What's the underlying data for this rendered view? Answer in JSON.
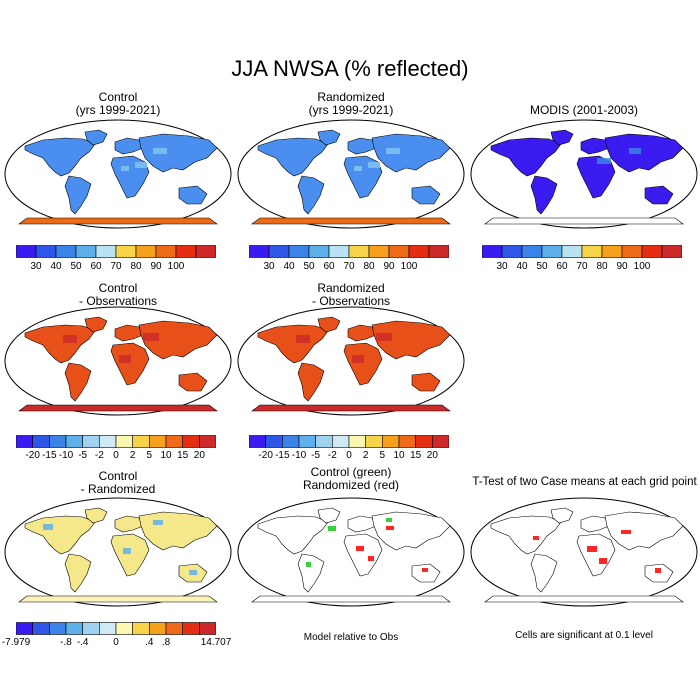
{
  "title": "JJA NWSA (% reflected)",
  "panels": {
    "control": {
      "title_line1": "Control",
      "title_line2": "(yrs 1999-2021)"
    },
    "randomized": {
      "title_line1": "Randomized",
      "title_line2": "(yrs 1999-2021)"
    },
    "modis": {
      "title_line1": "MODIS (2001-2003)"
    },
    "control_obs": {
      "title_line1": "Control",
      "title_line2": "- Observations"
    },
    "random_obs": {
      "title_line1": "Randomized",
      "title_line2": "- Observations"
    },
    "control_random": {
      "title_line1": "Control",
      "title_line2": "- Randomized"
    },
    "green_red": {
      "title_line1": "Control (green)",
      "title_line2": "Randomized (red)",
      "note": "Model relative to Obs"
    },
    "ttest": {
      "title_line1": "T-Test of two Case means at each grid point",
      "note": "Cells are significant at 0.1 level"
    }
  },
  "colorbars": {
    "absolute": {
      "colors": [
        "#3b1cf0",
        "#2f56e6",
        "#3c83e8",
        "#5fb0ea",
        "#b9e2f2",
        "#f7d34a",
        "#f5a11d",
        "#ef6a16",
        "#e52d13",
        "#cc2a2a"
      ],
      "labels": [
        "30",
        "40",
        "50",
        "60",
        "70",
        "80",
        "90",
        "100"
      ]
    },
    "difference": {
      "colors": [
        "#3b1cf0",
        "#2f56e6",
        "#3c83e8",
        "#5fb0ea",
        "#9fd2ef",
        "#cfeaf5",
        "#fbf7b0",
        "#f7d34a",
        "#f5a11d",
        "#ef6a16",
        "#e52d13",
        "#cc2a2a"
      ],
      "labels": [
        "-20",
        "-15",
        "-10",
        "-5",
        "-2",
        "0",
        "2",
        "5",
        "10",
        "15",
        "20"
      ]
    },
    "model_diff": {
      "colors": [
        "#3b1cf0",
        "#2f56e6",
        "#3c83e8",
        "#5fb0ea",
        "#9fd2ef",
        "#cfeaf5",
        "#fbf7b0",
        "#f7d34a",
        "#f5a11d",
        "#ef6a16",
        "#e52d13",
        "#cc2a2a"
      ],
      "labels": [
        "-7.979",
        "-.8",
        "-.4",
        "0",
        ".4",
        ".8",
        "14.707"
      ]
    }
  },
  "map_colors": {
    "control": {
      "land": "#4a8ff0",
      "accent": "#7fc3f0",
      "antarctic": "#ef6a16"
    },
    "randomized": {
      "land": "#4a8ff0",
      "accent": "#7fc3f0",
      "antarctic": "#ef6a16"
    },
    "modis": {
      "land": "#3b1cf0",
      "accent": "#3c83e8",
      "antarctic": "#ffffff"
    },
    "control_obs": {
      "land": "#e8501a",
      "accent": "#cc2a2a",
      "antarctic": "#cc2a2a"
    },
    "random_obs": {
      "land": "#e8501a",
      "accent": "#cc2a2a",
      "antarctic": "#cc2a2a"
    },
    "control_random": {
      "land": "#f4e88a",
      "accent": "#5fb0ea",
      "antarctic": "#fbf3b8"
    },
    "green_red": {
      "land": "#ffffff",
      "accent": "#ff0000",
      "antarctic": "#ffffff"
    },
    "ttest": {
      "land": "#ffffff",
      "accent": "#ff0000",
      "antarctic": "#ffffff"
    }
  }
}
